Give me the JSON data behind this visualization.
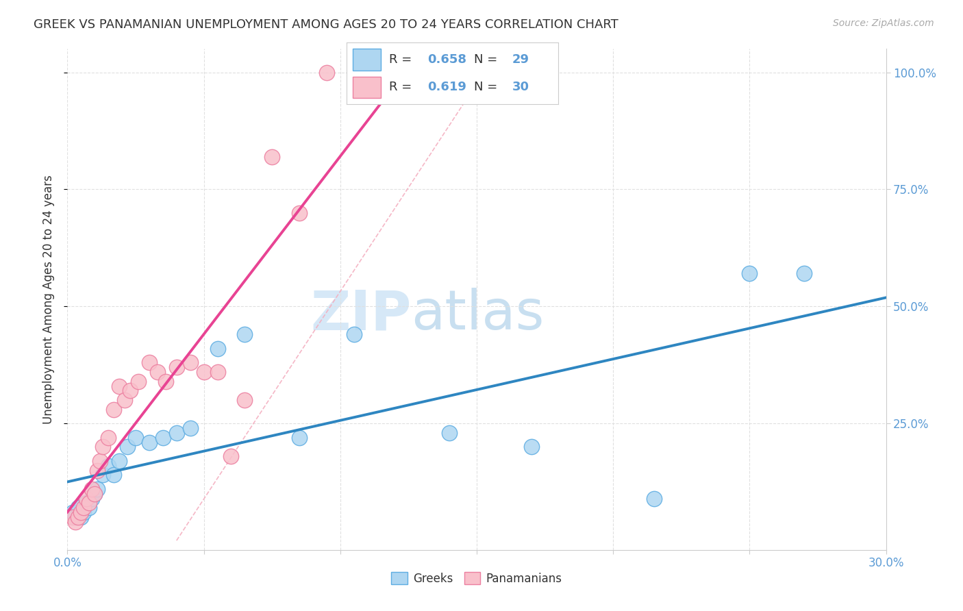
{
  "title": "GREEK VS PANAMANIAN UNEMPLOYMENT AMONG AGES 20 TO 24 YEARS CORRELATION CHART",
  "source": "Source: ZipAtlas.com",
  "ylabel": "Unemployment Among Ages 20 to 24 years",
  "xlim": [
    0.0,
    0.3
  ],
  "ylim": [
    -0.02,
    1.05
  ],
  "xticks": [
    0.0,
    0.05,
    0.1,
    0.15,
    0.2,
    0.25,
    0.3
  ],
  "xtick_labels": [
    "0.0%",
    "",
    "",
    "",
    "",
    "",
    "30.0%"
  ],
  "ytick_labels": [
    "100.0%",
    "75.0%",
    "50.0%",
    "25.0%"
  ],
  "yticks": [
    1.0,
    0.75,
    0.5,
    0.25
  ],
  "greek_color": "#aed6f1",
  "greek_edge": "#5dade2",
  "panama_color": "#f9c0cb",
  "panama_edge": "#ec7fa0",
  "trend_blue": "#2e86c1",
  "trend_pink": "#e84393",
  "diag_color": "#f0b8c8",
  "greek_R": "0.658",
  "greek_N": "29",
  "panama_R": "0.619",
  "panama_N": "30",
  "greeks_x": [
    0.002,
    0.003,
    0.004,
    0.005,
    0.006,
    0.007,
    0.008,
    0.009,
    0.01,
    0.011,
    0.013,
    0.015,
    0.017,
    0.019,
    0.022,
    0.025,
    0.03,
    0.035,
    0.04,
    0.045,
    0.055,
    0.065,
    0.085,
    0.105,
    0.14,
    0.17,
    0.215,
    0.25,
    0.27
  ],
  "greeks_y": [
    0.06,
    0.05,
    0.07,
    0.05,
    0.06,
    0.08,
    0.07,
    0.09,
    0.1,
    0.11,
    0.14,
    0.16,
    0.14,
    0.17,
    0.2,
    0.22,
    0.21,
    0.22,
    0.23,
    0.24,
    0.41,
    0.44,
    0.22,
    0.44,
    0.23,
    0.2,
    0.09,
    0.57,
    0.57
  ],
  "panamanians_x": [
    0.002,
    0.003,
    0.004,
    0.005,
    0.006,
    0.007,
    0.008,
    0.009,
    0.01,
    0.011,
    0.012,
    0.013,
    0.015,
    0.017,
    0.019,
    0.021,
    0.023,
    0.026,
    0.03,
    0.033,
    0.036,
    0.04,
    0.045,
    0.05,
    0.055,
    0.06,
    0.065,
    0.075,
    0.085,
    0.095
  ],
  "panamanians_y": [
    0.05,
    0.04,
    0.05,
    0.06,
    0.07,
    0.09,
    0.08,
    0.11,
    0.1,
    0.15,
    0.17,
    0.2,
    0.22,
    0.28,
    0.33,
    0.3,
    0.32,
    0.34,
    0.38,
    0.36,
    0.34,
    0.37,
    0.38,
    0.36,
    0.36,
    0.18,
    0.3,
    0.82,
    0.7,
    1.0
  ],
  "watermark_zip": "ZIP",
  "watermark_atlas": "atlas",
  "background_color": "#ffffff",
  "grid_color": "#e0e0e0"
}
